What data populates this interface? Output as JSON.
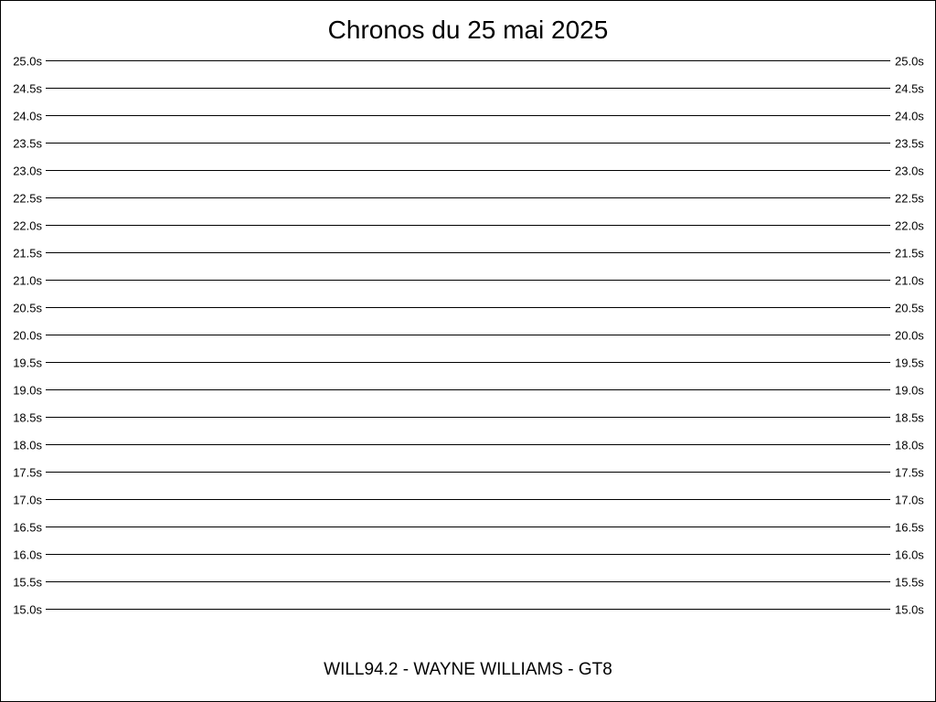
{
  "chart_data": {
    "type": "line",
    "title": "Chronos du 25 mai 2025",
    "caption": "WILL94.2 - WAYNE WILLIAMS - GT8",
    "xlabel": "",
    "ylabel": "",
    "ylim": [
      15.0,
      25.0
    ],
    "y_ticks": [
      25.0,
      24.5,
      24.0,
      23.5,
      23.0,
      22.5,
      22.0,
      21.5,
      21.0,
      20.5,
      20.0,
      19.5,
      19.0,
      18.5,
      18.0,
      17.5,
      17.0,
      16.5,
      16.0,
      15.5,
      15.0
    ],
    "y_tick_labels": [
      "25.0s",
      "24.5s",
      "24.0s",
      "23.5s",
      "23.0s",
      "22.5s",
      "22.0s",
      "21.5s",
      "21.0s",
      "20.5s",
      "20.0s",
      "19.5s",
      "19.0s",
      "18.5s",
      "18.0s",
      "17.5s",
      "17.0s",
      "16.5s",
      "16.0s",
      "15.5s",
      "15.0s"
    ],
    "y_axis_labels_both_sides": true,
    "grid": true,
    "gridline_color": "#000000",
    "series": []
  }
}
